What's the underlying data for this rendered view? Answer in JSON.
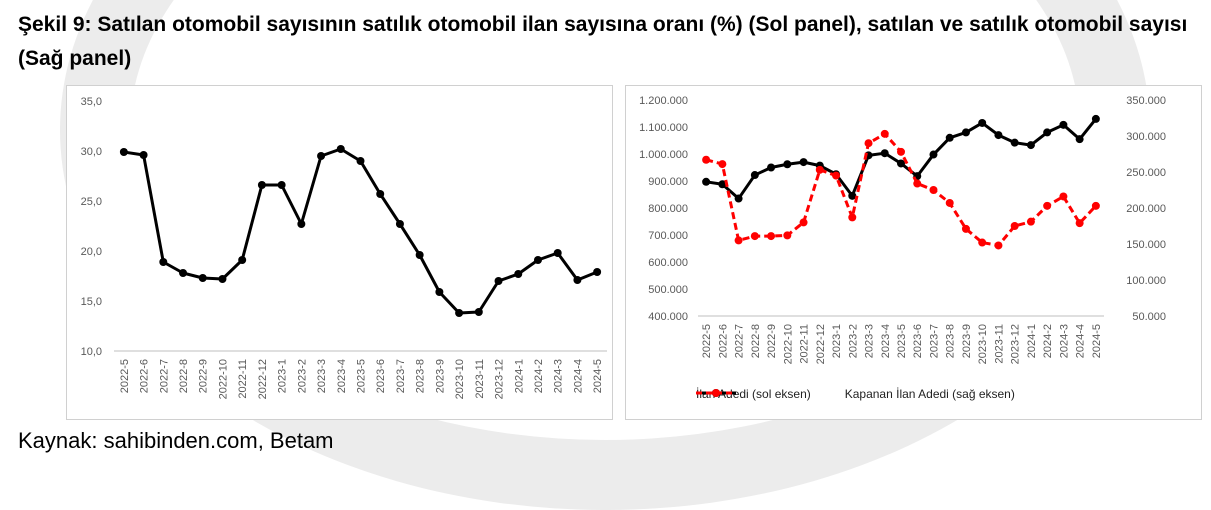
{
  "title": "Şekil 9: Satılan otomobil sayısının satılık otomobil ilan sayısına oranı (%) (Sol panel), satılan ve satılık otomobil sayısı (Sağ panel)",
  "source": "Kaynak: sahibinden.com, Betam",
  "chart_data": [
    {
      "type": "line",
      "categories": [
        "2022-5",
        "2022-6",
        "2022-7",
        "2022-8",
        "2022-9",
        "2022-10",
        "2022-11",
        "2022-12",
        "2023-1",
        "2023-2",
        "2023-3",
        "2023-4",
        "2023-5",
        "2023-6",
        "2023-7",
        "2023-8",
        "2023-9",
        "2023-10",
        "2023-11",
        "2023-12",
        "2024-1",
        "2024-2",
        "2024-3",
        "2024-4",
        "2024-5"
      ],
      "series": [
        {
          "values": [
            29.9,
            29.6,
            18.9,
            17.8,
            17.3,
            17.2,
            19.1,
            26.6,
            26.6,
            22.7,
            29.5,
            30.2,
            29.0,
            25.7,
            22.7,
            19.6,
            15.9,
            13.8,
            13.9,
            17.0,
            17.7,
            19.1,
            19.8,
            17.1,
            17.9
          ],
          "color": "#000000"
        }
      ],
      "ylim": [
        10,
        35
      ],
      "yticks": [
        "35,0",
        "30,0",
        "25,0",
        "20,0",
        "15,0",
        "10,0"
      ],
      "grid": false
    },
    {
      "type": "line",
      "categories": [
        "2022-5",
        "2022-6",
        "2022-7",
        "2022-8",
        "2022-9",
        "2022-10",
        "2022-11",
        "2022-12",
        "2023-1",
        "2023-2",
        "2023-3",
        "2023-4",
        "2023-5",
        "2023-6",
        "2023-7",
        "2023-8",
        "2023-9",
        "2023-10",
        "2023-11",
        "2023-12",
        "2024-1",
        "2024-2",
        "2024-3",
        "2024-4",
        "2024-5"
      ],
      "series": [
        {
          "name": "İlan Adedi (sol eksen)",
          "axis": "left",
          "style": "solid",
          "color": "#000000",
          "values": [
            897000,
            888000,
            835000,
            922000,
            950000,
            962000,
            970000,
            957000,
            925000,
            845000,
            995000,
            1003000,
            965000,
            918000,
            998000,
            1060000,
            1080000,
            1115000,
            1070000,
            1042000,
            1033000,
            1080000,
            1108000,
            1055000,
            1130000
          ]
        },
        {
          "name": "Kapanan İlan Adedi (sağ eksen)",
          "axis": "right",
          "style": "dashed",
          "color": "#ff0000",
          "values": [
            267000,
            261000,
            155000,
            161000,
            161000,
            162000,
            180000,
            253000,
            245000,
            187000,
            290000,
            303000,
            278000,
            234000,
            225000,
            207000,
            171000,
            152000,
            148000,
            175000,
            181000,
            203000,
            216000,
            179000,
            203000
          ]
        }
      ],
      "ylim_left": [
        400000,
        1200000
      ],
      "ylim_right": [
        50000,
        350000
      ],
      "yticks_left": [
        "1.200.000",
        "1.100.000",
        "1.000.000",
        "900.000",
        "800.000",
        "700.000",
        "600.000",
        "500.000",
        "400.000"
      ],
      "yticks_right": [
        "350.000",
        "300.000",
        "250.000",
        "200.000",
        "150.000",
        "100.000",
        "50.000"
      ],
      "legend": "bottom",
      "grid": false
    }
  ]
}
